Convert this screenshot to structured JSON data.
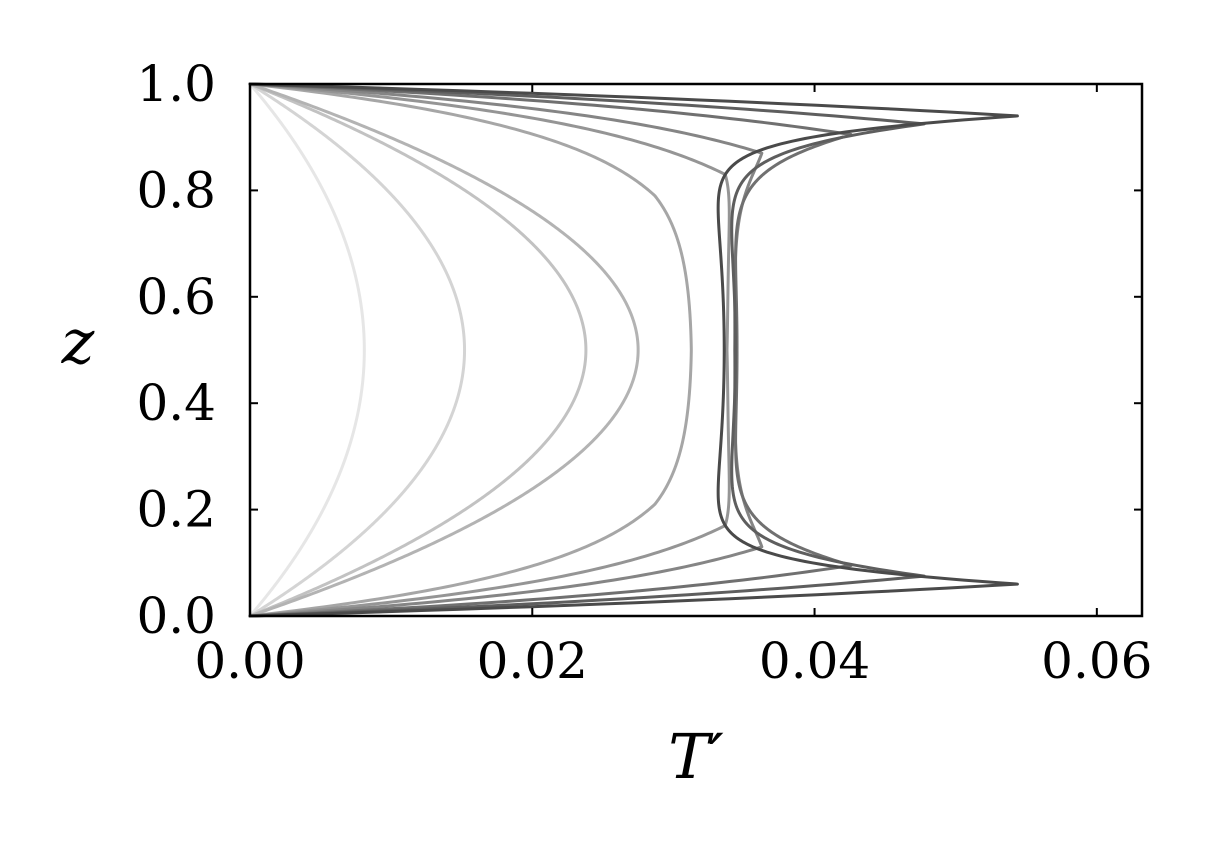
{
  "chart_data": {
    "type": "line",
    "xlabel": "T′",
    "ylabel": "z",
    "xlim": [
      0,
      0.0632
    ],
    "ylim": [
      0,
      1
    ],
    "xticks": [
      0.0,
      0.02,
      0.04,
      0.06
    ],
    "xtick_labels": [
      "0.00",
      "0.02",
      "0.04",
      "0.06"
    ],
    "yticks": [
      0.0,
      0.2,
      0.4,
      0.6,
      0.8,
      1.0
    ],
    "ytick_labels": [
      "0.0",
      "0.2",
      "0.4",
      "0.6",
      "0.8",
      "1.0"
    ],
    "grid": false,
    "legend": "none",
    "series": [
      {
        "color": "#e6e6e6",
        "mid": 0.0081,
        "peak": 0.0081,
        "zpeak": 0.5
      },
      {
        "color": "#d4d4d4",
        "mid": 0.0152,
        "peak": 0.0152,
        "zpeak": 0.5
      },
      {
        "color": "#c2c2c2",
        "mid": 0.0238,
        "peak": 0.0238,
        "zpeak": 0.5
      },
      {
        "color": "#b3b3b3",
        "mid": 0.0275,
        "peak": 0.0275,
        "zpeak": 0.5
      },
      {
        "color": "#a6a6a6",
        "mid": 0.0313,
        "peak": 0.0322,
        "zpeak": 0.21
      },
      {
        "color": "#959595",
        "mid": 0.0337,
        "peak": 0.0378,
        "zpeak": 0.17
      },
      {
        "color": "#858585",
        "mid": 0.0343,
        "peak": 0.0408,
        "zpeak": 0.13
      },
      {
        "color": "#707070",
        "mid": 0.0345,
        "peak": 0.0477,
        "zpeak": 0.095
      },
      {
        "color": "#5e5e5e",
        "mid": 0.0344,
        "peak": 0.0533,
        "zpeak": 0.075
      },
      {
        "color": "#4a4a4a",
        "mid": 0.0336,
        "peak": 0.0603,
        "zpeak": 0.06
      }
    ]
  }
}
